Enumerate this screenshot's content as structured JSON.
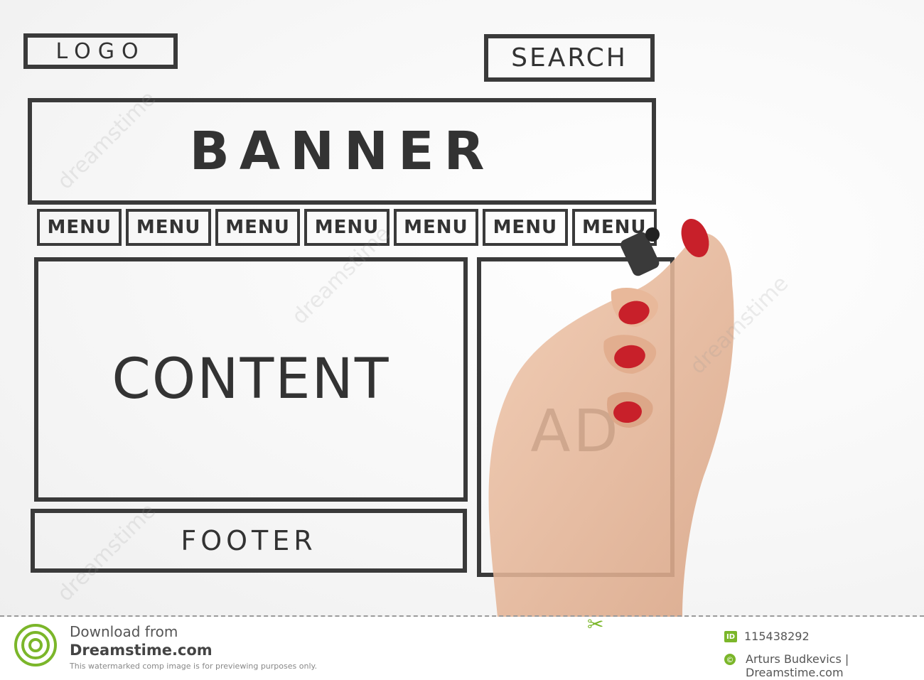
{
  "sketch": {
    "logo": "LOGO",
    "search": "SEARCH",
    "banner": "BANNER",
    "menus": [
      "MENU",
      "MENU",
      "MENU",
      "MENU",
      "MENU",
      "MENU",
      "MENU"
    ],
    "content": "CONTENT",
    "ad": "AD",
    "footer": "FOOTER"
  },
  "watermark": "dreamstime",
  "bottom_bar": {
    "download_from": "Download from",
    "site": "Dreamstime.com",
    "notice": "This watermarked comp image is for previewing purposes only.",
    "id_label": "ID",
    "id_value": "115438292",
    "copyright_symbol": "©",
    "credit": "Arturs Budkevics | Dreamstime.com"
  },
  "colors": {
    "sketch_line": "#3a3a3a",
    "brand_green": "#7bb62a",
    "nail_red": "#c8202a",
    "skin": "#e8b89a"
  }
}
